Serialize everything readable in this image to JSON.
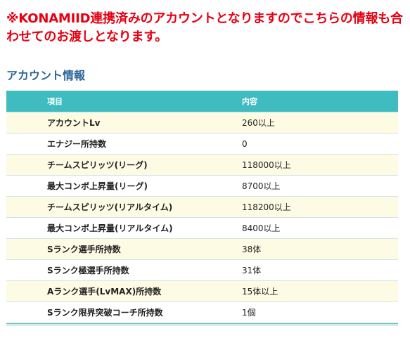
{
  "notice": "※KONAMIID連携済みのアカウントとなりますのでこちらの情報も合わせてのお渡しとなります。",
  "section_title": "アカウント情報",
  "table": {
    "headers": [
      "項目",
      "内容"
    ],
    "rows": [
      {
        "item": "アカウントLv",
        "value": "260以上"
      },
      {
        "item": "エナジー所持数",
        "value": "0"
      },
      {
        "item": "チームスピリッツ(リーグ)",
        "value": "118000以上"
      },
      {
        "item": "最大コンボ上昇量(リーグ)",
        "value": "8700以上"
      },
      {
        "item": "チームスピリッツ(リアルタイム)",
        "value": "118200以上"
      },
      {
        "item": "最大コンボ上昇量(リアルタイム)",
        "value": "8400以上"
      },
      {
        "item": "Sランク選手所持数",
        "value": "38体"
      },
      {
        "item": "Sランク極選手所持数",
        "value": "31体"
      },
      {
        "item": "Aランク選手(LvMAX)所持数",
        "value": "15体以上"
      },
      {
        "item": "Sランク限界突破コーチ所持数",
        "value": "1個"
      }
    ]
  },
  "colors": {
    "notice": "#e60012",
    "section_title": "#2a6496",
    "header_bg": "#3fbcc0",
    "row_odd_bg": "#fefbe4",
    "row_even_bg": "#ffffff"
  }
}
